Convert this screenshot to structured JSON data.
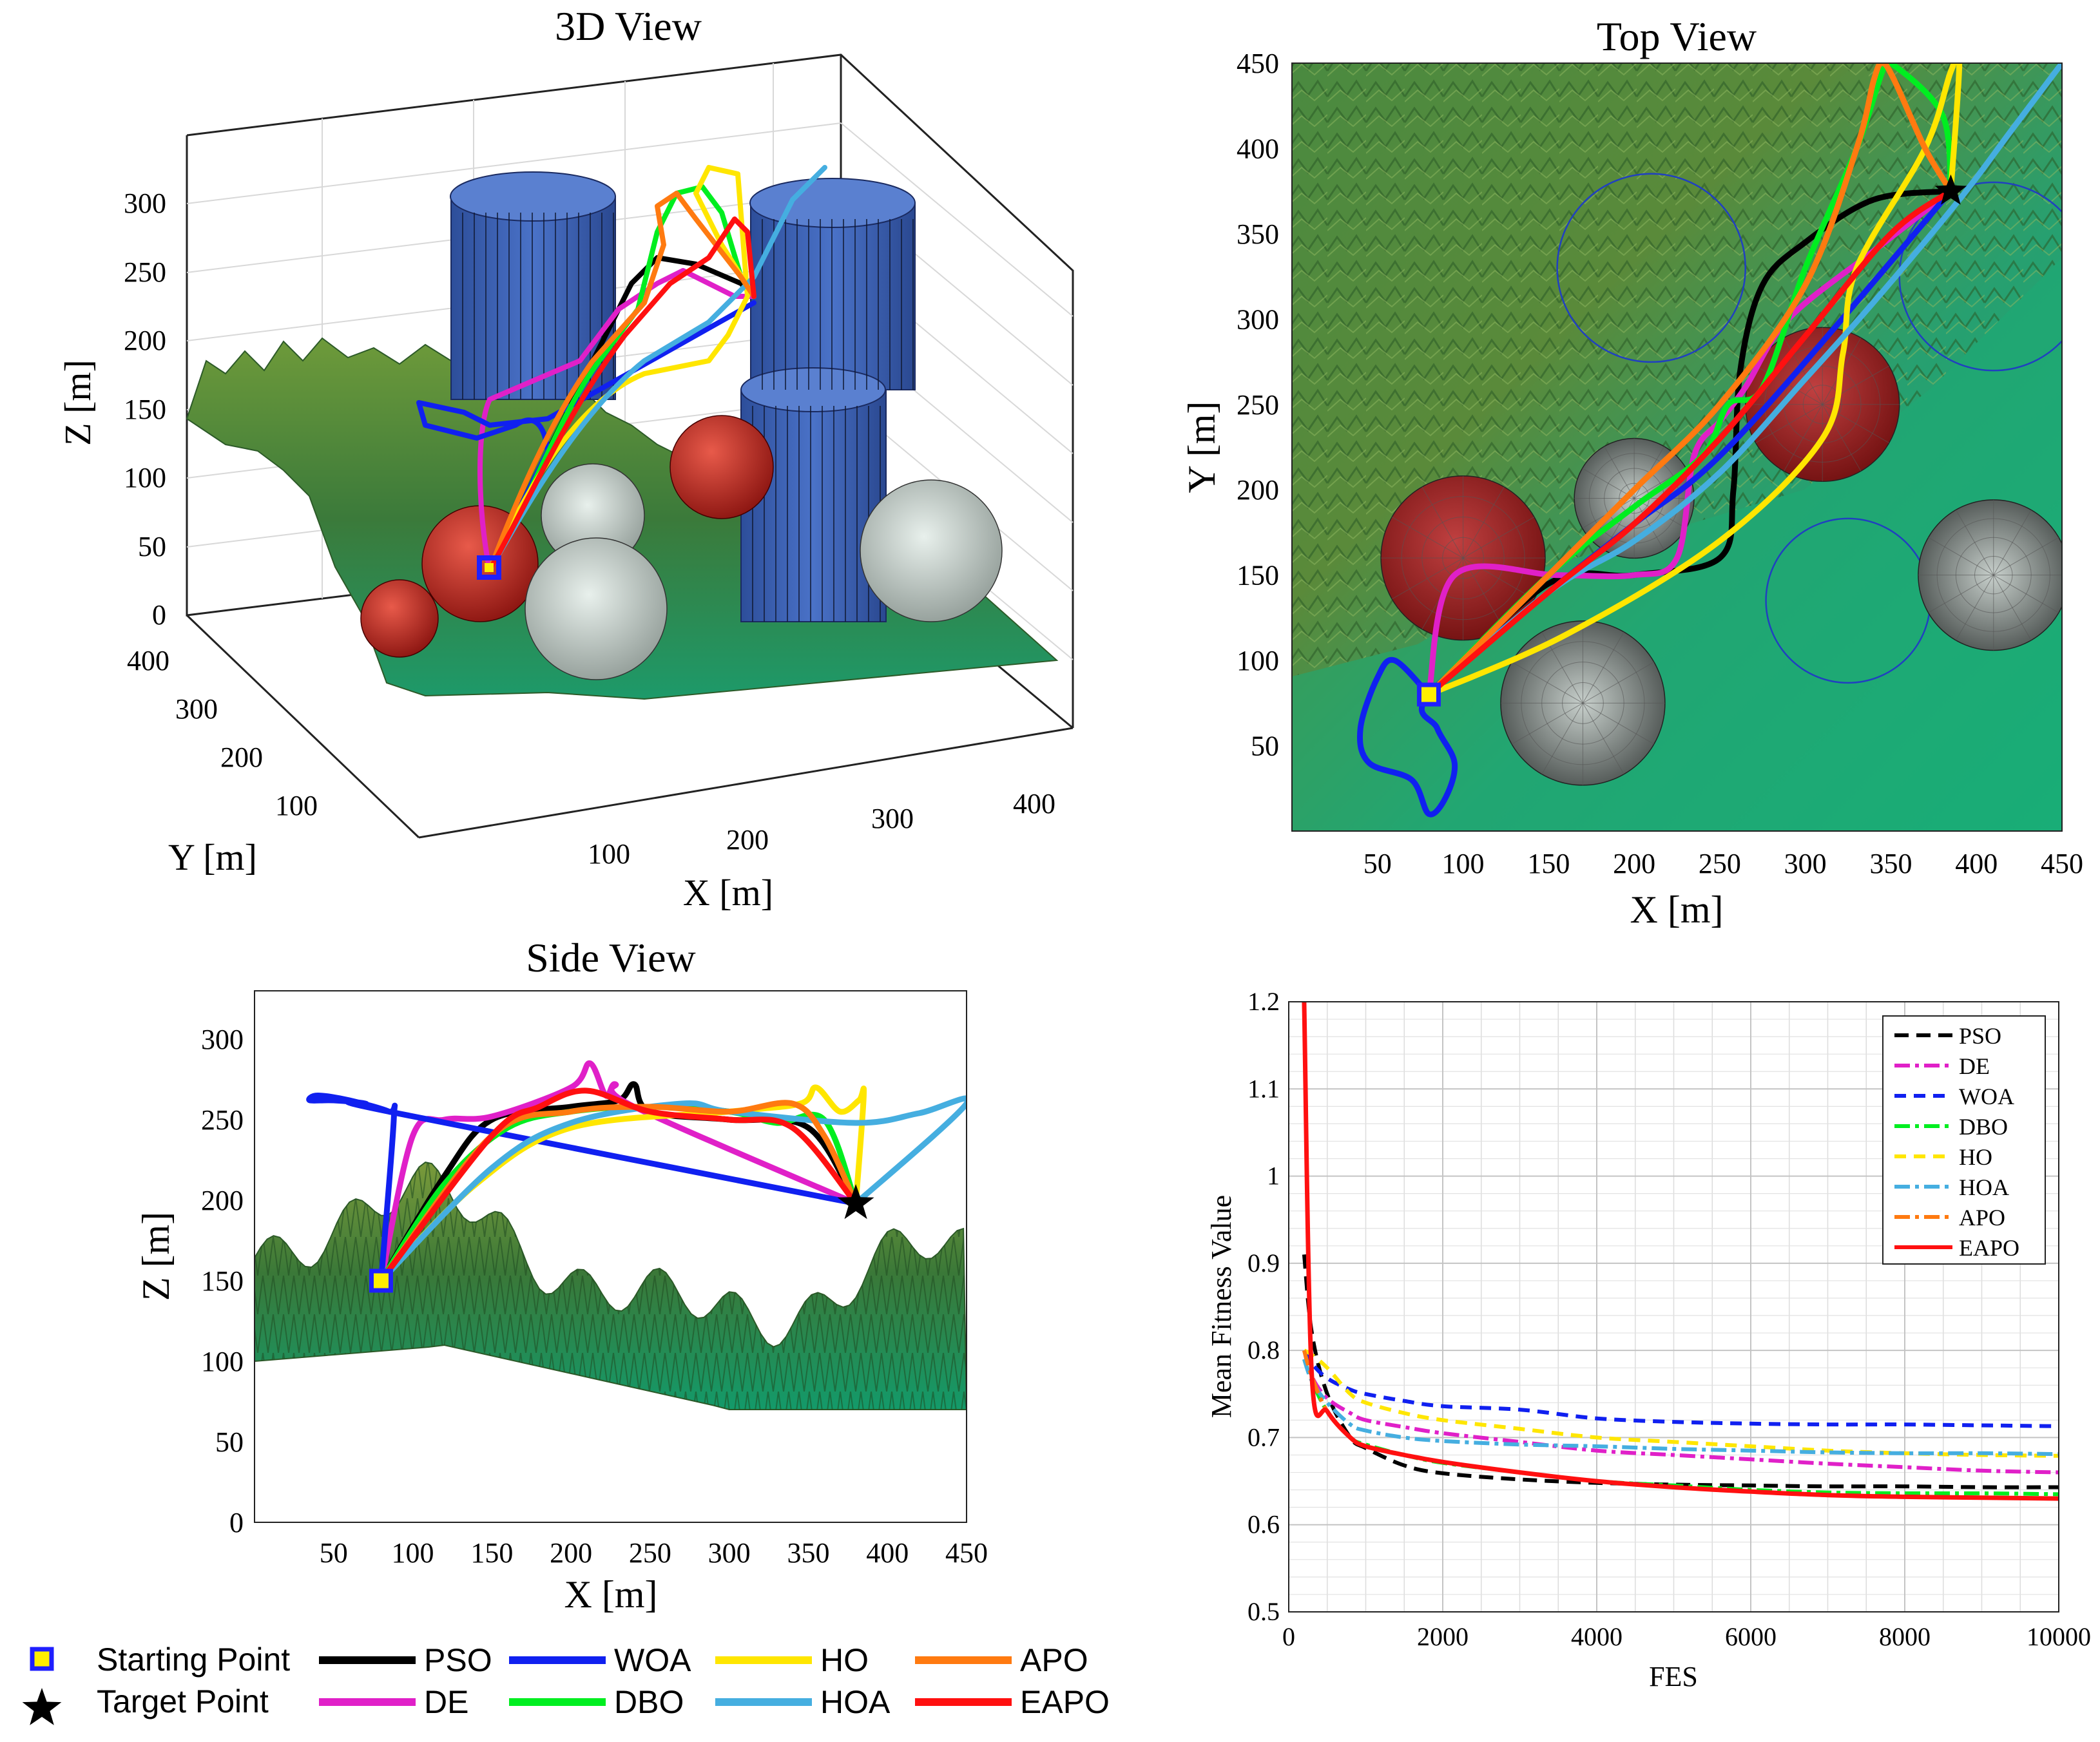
{
  "legend": {
    "items": [
      {
        "label": "Starting Point",
        "marker": "square",
        "color": "#1f1fff"
      },
      {
        "label": "Target Point",
        "marker": "star",
        "color": "#000000"
      },
      {
        "label": "PSO",
        "color": "#000000"
      },
      {
        "label": "DE",
        "color": "#e020c8"
      },
      {
        "label": "WOA",
        "color": "#1020f0"
      },
      {
        "label": "DBO",
        "color": "#00ee20"
      },
      {
        "label": "HO",
        "color": "#ffe600"
      },
      {
        "label": "HOA",
        "color": "#45aee0"
      },
      {
        "label": "APO",
        "color": "#ff7a10"
      },
      {
        "label": "EAPO",
        "color": "#ff1010"
      }
    ]
  },
  "chart_data": [
    {
      "type": "line",
      "title": "3D View",
      "xlabel": "X [m]",
      "ylabel": "Y [m]",
      "zlabel": "Z [m]",
      "x_ticks": [
        "100",
        "200",
        "300",
        "400"
      ],
      "y_ticks": [
        "100",
        "200",
        "300",
        "400"
      ],
      "z_ticks": [
        "0",
        "50",
        "100",
        "150",
        "200",
        "250",
        "300"
      ],
      "start": {
        "x": 80,
        "y": 80,
        "z": 150
      },
      "target": {
        "x": 380,
        "y": 380,
        "z": 200
      },
      "series_names": [
        "PSO",
        "DE",
        "WOA",
        "DBO",
        "HO",
        "HOA",
        "APO",
        "EAPO"
      ]
    },
    {
      "type": "line",
      "title": "Top View",
      "xlabel": "X [m]",
      "ylabel": "Y [m]",
      "xlim": [
        0,
        450
      ],
      "ylim": [
        0,
        450
      ],
      "x_ticks": [
        "50",
        "100",
        "150",
        "200",
        "250",
        "300",
        "350",
        "400",
        "450"
      ],
      "y_ticks": [
        "50",
        "100",
        "150",
        "200",
        "250",
        "300",
        "350",
        "400",
        "450"
      ],
      "start": {
        "x": 80,
        "y": 80
      },
      "target": {
        "x": 385,
        "y": 375
      },
      "series": [
        {
          "name": "PSO",
          "x": [
            80,
            150,
            200,
            250,
            258,
            262,
            275,
            300,
            340,
            385
          ],
          "y": [
            80,
            145,
            150,
            160,
            200,
            270,
            320,
            345,
            370,
            375
          ]
        },
        {
          "name": "DE",
          "x": [
            80,
            95,
            155,
            200,
            225,
            235,
            250,
            265,
            290,
            340,
            385
          ],
          "y": [
            80,
            150,
            150,
            150,
            160,
            220,
            240,
            260,
            300,
            340,
            375
          ]
        },
        {
          "name": "WOA",
          "x": [
            80,
            60,
            50,
            40,
            45,
            70,
            80,
            90,
            95,
            85,
            80,
            150,
            200,
            260,
            385
          ],
          "y": [
            80,
            100,
            90,
            60,
            40,
            30,
            10,
            20,
            40,
            60,
            80,
            140,
            180,
            230,
            375
          ]
        },
        {
          "name": "DBO",
          "x": [
            80,
            150,
            200,
            240,
            255,
            275,
            300,
            330,
            345,
            350,
            380,
            385
          ],
          "y": [
            80,
            150,
            190,
            220,
            250,
            260,
            330,
            400,
            445,
            450,
            420,
            375
          ]
        },
        {
          "name": "HO",
          "x": [
            80,
            160,
            250,
            310,
            322,
            330,
            370,
            385,
            390,
            385
          ],
          "y": [
            80,
            115,
            170,
            230,
            280,
            330,
            400,
            445,
            450,
            375
          ]
        },
        {
          "name": "HOA",
          "x": [
            80,
            150,
            200,
            250,
            300,
            340,
            390,
            420,
            450
          ],
          "y": [
            80,
            140,
            170,
            210,
            265,
            310,
            370,
            410,
            450
          ]
        },
        {
          "name": "APO",
          "x": [
            80,
            150,
            200,
            250,
            300,
            330,
            340,
            345,
            352,
            370,
            385
          ],
          "y": [
            80,
            150,
            200,
            250,
            320,
            400,
            440,
            450,
            440,
            400,
            375
          ]
        },
        {
          "name": "EAPO",
          "x": [
            80,
            150,
            200,
            250,
            300,
            350,
            385
          ],
          "y": [
            80,
            140,
            180,
            230,
            290,
            350,
            375
          ]
        }
      ]
    },
    {
      "type": "line",
      "title": "Side View",
      "xlabel": "X [m]",
      "ylabel": "Z [m]",
      "xlim": [
        0,
        450
      ],
      "ylim": [
        0,
        330
      ],
      "x_ticks": [
        "50",
        "100",
        "150",
        "200",
        "250",
        "300",
        "350",
        "400",
        "450"
      ],
      "y_ticks": [
        "0",
        "50",
        "100",
        "150",
        "200",
        "250",
        "300"
      ],
      "start": {
        "x": 80,
        "z": 150
      },
      "target": {
        "x": 380,
        "z": 198
      },
      "series": [
        {
          "name": "PSO",
          "x": [
            80,
            120,
            150,
            200,
            230,
            240,
            250,
            300,
            350,
            380
          ],
          "y": [
            150,
            215,
            250,
            258,
            262,
            272,
            255,
            250,
            245,
            198
          ]
        },
        {
          "name": "DE",
          "x": [
            80,
            100,
            120,
            150,
            200,
            212,
            222,
            228,
            240,
            380
          ],
          "y": [
            150,
            240,
            250,
            252,
            270,
            285,
            265,
            272,
            258,
            198
          ]
        },
        {
          "name": "WOA",
          "x": [
            80,
            88,
            85,
            60,
            40,
            35,
            50,
            70,
            85,
            380
          ],
          "y": [
            150,
            250,
            255,
            262,
            265,
            262,
            262,
            260,
            255,
            198
          ]
        },
        {
          "name": "DBO",
          "x": [
            80,
            120,
            160,
            200,
            250,
            300,
            330,
            360,
            380
          ],
          "y": [
            150,
            210,
            245,
            255,
            258,
            255,
            248,
            250,
            198
          ]
        },
        {
          "name": "HO",
          "x": [
            80,
            140,
            200,
            300,
            345,
            355,
            370,
            382,
            385,
            380
          ],
          "y": [
            150,
            210,
            245,
            255,
            260,
            270,
            255,
            262,
            265,
            198
          ]
        },
        {
          "name": "HOA",
          "x": [
            80,
            150,
            200,
            270,
            300,
            380,
            420,
            450,
            380
          ],
          "y": [
            150,
            220,
            248,
            260,
            255,
            248,
            254,
            260,
            198
          ]
        },
        {
          "name": "APO",
          "x": [
            80,
            150,
            200,
            250,
            300,
            340,
            360,
            380
          ],
          "y": [
            150,
            240,
            255,
            258,
            255,
            260,
            240,
            198
          ]
        },
        {
          "name": "EAPO",
          "x": [
            80,
            150,
            180,
            210,
            250,
            300,
            340,
            380
          ],
          "y": [
            150,
            240,
            258,
            268,
            255,
            250,
            245,
            198
          ]
        }
      ]
    },
    {
      "type": "line",
      "title": "",
      "xlabel": "FES",
      "ylabel": "Mean Fitness Value",
      "xlim": [
        0,
        10000
      ],
      "ylim": [
        0.5,
        1.2
      ],
      "x_ticks": [
        "0",
        "2000",
        "4000",
        "6000",
        "8000",
        "10000"
      ],
      "y_ticks": [
        "0.5",
        "0.6",
        "0.7",
        "0.8",
        "0.9",
        "1",
        "1.1",
        "1.2"
      ],
      "grid": true,
      "legend_position": "top-right",
      "x": [
        200,
        300,
        500,
        800,
        1000,
        1500,
        2000,
        3000,
        4000,
        5000,
        6000,
        7000,
        8000,
        9000,
        10000
      ],
      "series": [
        {
          "name": "PSO",
          "values": [
            0.91,
            0.82,
            0.75,
            0.7,
            0.688,
            0.668,
            0.659,
            0.652,
            0.648,
            0.646,
            0.645,
            0.644,
            0.644,
            0.643,
            0.643
          ]
        },
        {
          "name": "DE",
          "values": [
            0.8,
            0.77,
            0.745,
            0.728,
            0.72,
            0.712,
            0.705,
            0.695,
            0.685,
            0.68,
            0.675,
            0.67,
            0.666,
            0.662,
            0.66
          ]
        },
        {
          "name": "WOA",
          "values": [
            0.8,
            0.785,
            0.768,
            0.755,
            0.75,
            0.742,
            0.736,
            0.732,
            0.722,
            0.718,
            0.716,
            0.715,
            0.715,
            0.714,
            0.713
          ]
        },
        {
          "name": "DBO",
          "values": [
            0.79,
            0.765,
            0.73,
            0.7,
            0.692,
            0.68,
            0.671,
            0.66,
            0.65,
            0.645,
            0.64,
            0.637,
            0.636,
            0.636,
            0.635
          ]
        },
        {
          "name": "HO",
          "values": [
            0.8,
            0.795,
            0.78,
            0.75,
            0.74,
            0.728,
            0.72,
            0.71,
            0.7,
            0.695,
            0.69,
            0.685,
            0.682,
            0.68,
            0.679
          ]
        },
        {
          "name": "HOA",
          "values": [
            0.79,
            0.765,
            0.74,
            0.715,
            0.708,
            0.7,
            0.696,
            0.692,
            0.69,
            0.687,
            0.685,
            0.683,
            0.682,
            0.682,
            0.681
          ]
        },
        {
          "name": "APO",
          "values": [
            0.8,
            0.77,
            0.73,
            0.7,
            0.69,
            0.68,
            0.672,
            0.66,
            0.65,
            0.643,
            0.638,
            0.634,
            0.632,
            0.631,
            0.63
          ]
        },
        {
          "name": "EAPO",
          "values": [
            1.2,
            0.77,
            0.73,
            0.7,
            0.69,
            0.68,
            0.672,
            0.66,
            0.65,
            0.643,
            0.638,
            0.634,
            0.632,
            0.631,
            0.63
          ]
        }
      ]
    }
  ]
}
